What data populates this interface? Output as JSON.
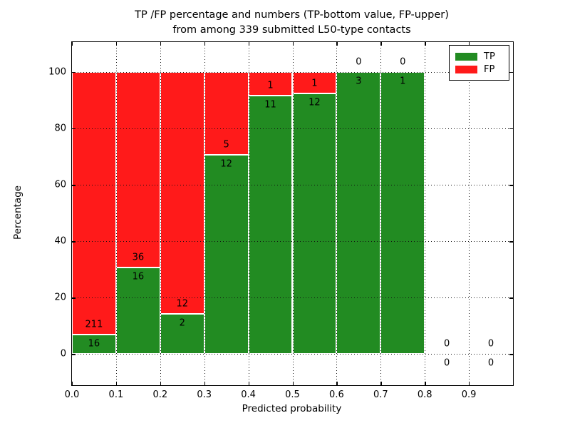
{
  "chart": {
    "title_line1": "TP /FP percentage and numbers (TP-bottom value, FP-upper)",
    "title_line2": "from among 339 submitted L50-type contacts",
    "xlabel": "Predicted probability",
    "ylabel": "Percentage",
    "legend": {
      "tp_label": "TP",
      "fp_label": "FP"
    }
  },
  "chart_data": {
    "type": "bar",
    "stacked": true,
    "title": "TP /FP percentage and numbers (TP-bottom value, FP-upper) from among 339 submitted L50-type contacts",
    "xlabel": "Predicted probability",
    "ylabel": "Percentage",
    "total_submitted": 339,
    "bin_width": 0.1,
    "bin_starts": [
      0.0,
      0.1,
      0.2,
      0.3,
      0.4,
      0.5,
      0.6,
      0.7,
      0.8,
      0.9
    ],
    "x_tick_labels": [
      "0.0",
      "0.1",
      "0.2",
      "0.3",
      "0.4",
      "0.5",
      "0.6",
      "0.7",
      "0.8",
      "0.9"
    ],
    "y_ticks": [
      0,
      20,
      40,
      60,
      80,
      100
    ],
    "xlim": [
      0.0,
      1.0
    ],
    "ylim": [
      -11,
      110.6
    ],
    "grid": true,
    "grid_style": "dotted",
    "legend_position": "upper right",
    "bar_mode": "percent_stacked_to_100",
    "series": [
      {
        "name": "TP",
        "color": "#228B22",
        "counts": [
          16,
          16,
          2,
          12,
          11,
          12,
          3,
          1,
          0,
          0
        ]
      },
      {
        "name": "FP",
        "color": "#FF1A1A",
        "counts": [
          211,
          36,
          12,
          5,
          1,
          1,
          0,
          0,
          0,
          0
        ]
      }
    ],
    "tp_percent": [
      7.05,
      30.77,
      14.29,
      70.59,
      91.67,
      92.31,
      100.0,
      100.0,
      0.0,
      0.0
    ]
  }
}
